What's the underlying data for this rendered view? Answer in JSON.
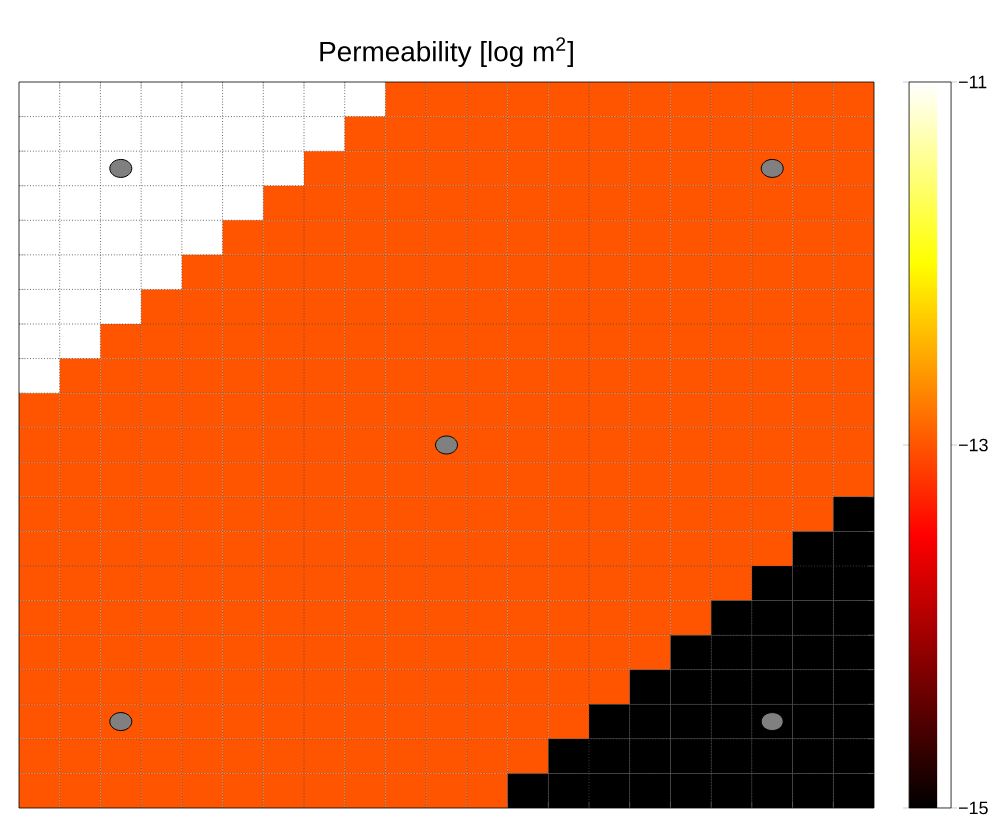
{
  "chart_data": {
    "type": "heatmap",
    "title": "Permeability [log m$^{2}$]",
    "categories": [
      null,
      null,
      null,
      null,
      null,
      null,
      null,
      null,
      null,
      null,
      null,
      null,
      null,
      null,
      null,
      null,
      null,
      null,
      null,
      null,
      null
    ],
    "y_categories": [
      null,
      null,
      null,
      null,
      null,
      null,
      null,
      null,
      null,
      null,
      null,
      null,
      null,
      null,
      null,
      null,
      null,
      null,
      null,
      null,
      null
    ],
    "cells": [
      [
        -11,
        -11,
        -11,
        -11,
        -11,
        -11,
        -11,
        -11,
        -11,
        -13,
        -13,
        -13,
        -13,
        -13,
        -13,
        -13,
        -13,
        -13,
        -13,
        -13,
        -13
      ],
      [
        -11,
        -11,
        -11,
        -11,
        -11,
        -11,
        -11,
        -11,
        -13,
        -13,
        -13,
        -13,
        -13,
        -13,
        -13,
        -13,
        -13,
        -13,
        -13,
        -13,
        -13
      ],
      [
        -11,
        -11,
        -11,
        -11,
        -11,
        -11,
        -11,
        -13,
        -13,
        -13,
        -13,
        -13,
        -13,
        -13,
        -13,
        -13,
        -13,
        -13,
        -13,
        -13,
        -13
      ],
      [
        -11,
        -11,
        -11,
        -11,
        -11,
        -11,
        -13,
        -13,
        -13,
        -13,
        -13,
        -13,
        -13,
        -13,
        -13,
        -13,
        -13,
        -13,
        -13,
        -13,
        -13
      ],
      [
        -11,
        -11,
        -11,
        -11,
        -11,
        -13,
        -13,
        -13,
        -13,
        -13,
        -13,
        -13,
        -13,
        -13,
        -13,
        -13,
        -13,
        -13,
        -13,
        -13,
        -13
      ],
      [
        -11,
        -11,
        -11,
        -11,
        -13,
        -13,
        -13,
        -13,
        -13,
        -13,
        -13,
        -13,
        -13,
        -13,
        -13,
        -13,
        -13,
        -13,
        -13,
        -13,
        -13
      ],
      [
        -11,
        -11,
        -11,
        -13,
        -13,
        -13,
        -13,
        -13,
        -13,
        -13,
        -13,
        -13,
        -13,
        -13,
        -13,
        -13,
        -13,
        -13,
        -13,
        -13,
        -13
      ],
      [
        -11,
        -11,
        -13,
        -13,
        -13,
        -13,
        -13,
        -13,
        -13,
        -13,
        -13,
        -13,
        -13,
        -13,
        -13,
        -13,
        -13,
        -13,
        -13,
        -13,
        -13
      ],
      [
        -11,
        -13,
        -13,
        -13,
        -13,
        -13,
        -13,
        -13,
        -13,
        -13,
        -13,
        -13,
        -13,
        -13,
        -13,
        -13,
        -13,
        -13,
        -13,
        -13,
        -13
      ],
      [
        -13,
        -13,
        -13,
        -13,
        -13,
        -13,
        -13,
        -13,
        -13,
        -13,
        -13,
        -13,
        -13,
        -13,
        -13,
        -13,
        -13,
        -13,
        -13,
        -13,
        -13
      ],
      [
        -13,
        -13,
        -13,
        -13,
        -13,
        -13,
        -13,
        -13,
        -13,
        -13,
        -13,
        -13,
        -13,
        -13,
        -13,
        -13,
        -13,
        -13,
        -13,
        -13,
        -13
      ],
      [
        -13,
        -13,
        -13,
        -13,
        -13,
        -13,
        -13,
        -13,
        -13,
        -13,
        -13,
        -13,
        -13,
        -13,
        -13,
        -13,
        -13,
        -13,
        -13,
        -13,
        -13
      ],
      [
        -13,
        -13,
        -13,
        -13,
        -13,
        -13,
        -13,
        -13,
        -13,
        -13,
        -13,
        -13,
        -13,
        -13,
        -13,
        -13,
        -13,
        -13,
        -13,
        -13,
        -15
      ],
      [
        -13,
        -13,
        -13,
        -13,
        -13,
        -13,
        -13,
        -13,
        -13,
        -13,
        -13,
        -13,
        -13,
        -13,
        -13,
        -13,
        -13,
        -13,
        -13,
        -15,
        -15
      ],
      [
        -13,
        -13,
        -13,
        -13,
        -13,
        -13,
        -13,
        -13,
        -13,
        -13,
        -13,
        -13,
        -13,
        -13,
        -13,
        -13,
        -13,
        -13,
        -15,
        -15,
        -15
      ],
      [
        -13,
        -13,
        -13,
        -13,
        -13,
        -13,
        -13,
        -13,
        -13,
        -13,
        -13,
        -13,
        -13,
        -13,
        -13,
        -13,
        -13,
        -15,
        -15,
        -15,
        -15
      ],
      [
        -13,
        -13,
        -13,
        -13,
        -13,
        -13,
        -13,
        -13,
        -13,
        -13,
        -13,
        -13,
        -13,
        -13,
        -13,
        -13,
        -15,
        -15,
        -15,
        -15,
        -15
      ],
      [
        -13,
        -13,
        -13,
        -13,
        -13,
        -13,
        -13,
        -13,
        -13,
        -13,
        -13,
        -13,
        -13,
        -13,
        -13,
        -15,
        -15,
        -15,
        -15,
        -15,
        -15
      ],
      [
        -13,
        -13,
        -13,
        -13,
        -13,
        -13,
        -13,
        -13,
        -13,
        -13,
        -13,
        -13,
        -13,
        -13,
        -15,
        -15,
        -15,
        -15,
        -15,
        -15,
        -15
      ],
      [
        -13,
        -13,
        -13,
        -13,
        -13,
        -13,
        -13,
        -13,
        -13,
        -13,
        -13,
        -13,
        -13,
        -15,
        -15,
        -15,
        -15,
        -15,
        -15,
        -15,
        -15
      ],
      [
        -13,
        -13,
        -13,
        -13,
        -13,
        -13,
        -13,
        -13,
        -13,
        -13,
        -13,
        -13,
        -15,
        -15,
        -15,
        -15,
        -15,
        -15,
        -15,
        -15,
        -15
      ]
    ],
    "clim": [
      -15,
      -11
    ],
    "cticks": [
      {
        "value": -15,
        "label": "−15"
      },
      {
        "value": -13,
        "label": "−13"
      },
      {
        "value": -11,
        "label": "−11"
      }
    ],
    "grid": true,
    "tick_labels": false
  }
}
